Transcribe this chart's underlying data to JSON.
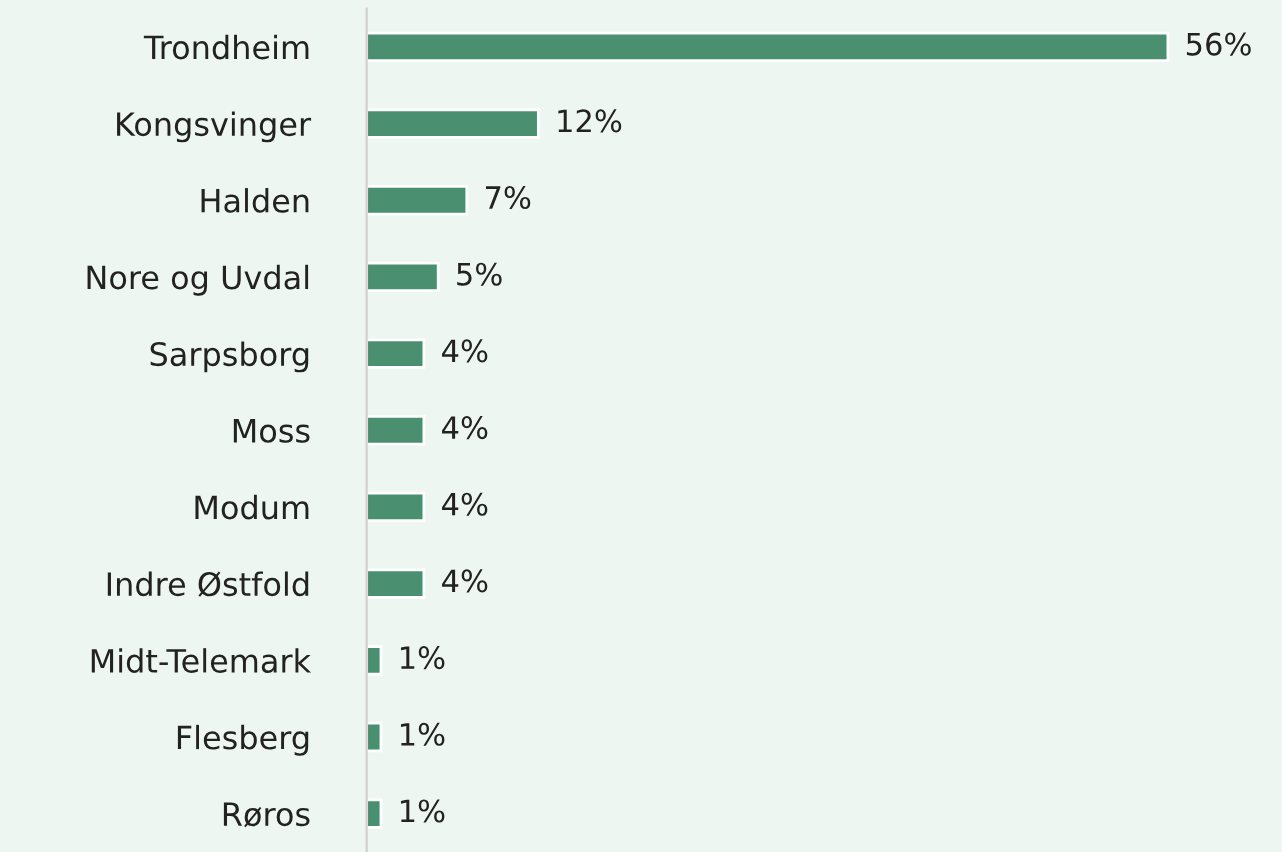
{
  "chart_data": {
    "type": "bar",
    "orientation": "horizontal",
    "categories": [
      "Trondheim",
      "Kongsvinger",
      "Halden",
      "Nore og Uvdal",
      "Sarpsborg",
      "Moss",
      "Modum",
      "Indre Østfold",
      "Midt-Telemark",
      "Flesberg",
      "Røros"
    ],
    "values": [
      56,
      12,
      7,
      5,
      4,
      4,
      4,
      4,
      1,
      1,
      1
    ],
    "value_labels": [
      "56%",
      "12%",
      "7%",
      "5%",
      "4%",
      "4%",
      "4%",
      "4%",
      "1%",
      "1%",
      "1%"
    ],
    "color": "#4a8f6f",
    "grid": false,
    "legend": false
  }
}
